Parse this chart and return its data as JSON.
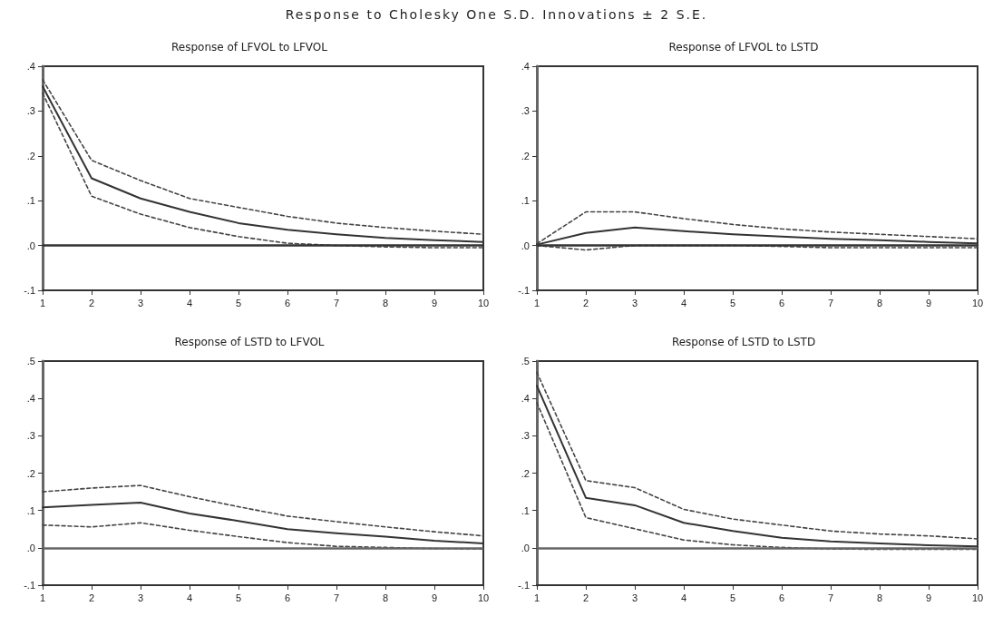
{
  "chart_data": [
    {
      "type": "other",
      "title": "Response to Cholesky One S.D. Innovations ± 2 S.E."
    },
    {
      "type": "line",
      "title": "Response of LFVOL to LFVOL",
      "x": [
        1,
        2,
        3,
        4,
        5,
        6,
        7,
        8,
        9,
        10
      ],
      "xlim": [
        1,
        10
      ],
      "xticks": [
        1,
        2,
        3,
        4,
        5,
        6,
        7,
        8,
        9,
        10
      ],
      "ylim": [
        -0.1,
        0.4
      ],
      "yticks": [
        {
          "value": -0.1,
          "label": "-.1"
        },
        {
          "value": 0,
          "label": ".0"
        },
        {
          "value": 0.1,
          "label": ".1"
        },
        {
          "value": 0.2,
          "label": ".2"
        },
        {
          "value": 0.3,
          "label": ".3"
        },
        {
          "value": 0.4,
          "label": ".4"
        }
      ],
      "grid": false,
      "marker": "none",
      "series": [
        {
          "color": "#333333",
          "line_style": "solid",
          "values": [
            0.355,
            0.15,
            0.105,
            0.075,
            0.05,
            0.035,
            0.025,
            0.017,
            0.012,
            0.008
          ]
        },
        {
          "color": "#444444",
          "line_style": "dashed",
          "values": [
            0.37,
            0.19,
            0.145,
            0.105,
            0.085,
            0.065,
            0.05,
            0.04,
            0.032,
            0.025
          ]
        },
        {
          "color": "#444444",
          "line_style": "dashed",
          "values": [
            0.34,
            0.11,
            0.07,
            0.04,
            0.02,
            0.005,
            0,
            -0.003,
            -0.005,
            -0.005
          ]
        }
      ],
      "ref_lines": [
        {
          "axis": "y",
          "value": 0,
          "color": "#333333"
        }
      ]
    },
    {
      "type": "line",
      "title": "Response of LFVOL to LSTD",
      "x": [
        1,
        2,
        3,
        4,
        5,
        6,
        7,
        8,
        9,
        10
      ],
      "xlim": [
        1,
        10
      ],
      "xticks": [
        1,
        2,
        3,
        4,
        5,
        6,
        7,
        8,
        9,
        10
      ],
      "ylim": [
        -0.1,
        0.4
      ],
      "yticks": [
        {
          "value": -0.1,
          "label": "-.1"
        },
        {
          "value": 0,
          "label": ".0"
        },
        {
          "value": 0.1,
          "label": ".1"
        },
        {
          "value": 0.2,
          "label": ".2"
        },
        {
          "value": 0.3,
          "label": ".3"
        },
        {
          "value": 0.4,
          "label": ".4"
        }
      ],
      "grid": false,
      "marker": "none",
      "series": [
        {
          "color": "#333333",
          "line_style": "solid",
          "values": [
            0.002,
            0.028,
            0.04,
            0.032,
            0.025,
            0.02,
            0.015,
            0.012,
            0.008,
            0.005
          ]
        },
        {
          "color": "#444444",
          "line_style": "dashed",
          "values": [
            0.004,
            0.075,
            0.075,
            0.06,
            0.047,
            0.037,
            0.03,
            0.025,
            0.02,
            0.015
          ]
        },
        {
          "color": "#444444",
          "line_style": "dashed",
          "values": [
            0,
            -0.01,
            0,
            0,
            0,
            -0.002,
            -0.005,
            -0.005,
            -0.005,
            -0.005
          ]
        }
      ],
      "ref_lines": [
        {
          "axis": "y",
          "value": 0,
          "color": "#333333"
        }
      ]
    },
    {
      "type": "line",
      "title": "Response of LSTD to LFVOL",
      "x": [
        1,
        2,
        3,
        4,
        5,
        6,
        7,
        8,
        9,
        10
      ],
      "xlim": [
        1,
        10
      ],
      "xticks": [
        1,
        2,
        3,
        4,
        5,
        6,
        7,
        8,
        9,
        10
      ],
      "ylim": [
        -0.1,
        0.5
      ],
      "yticks": [
        {
          "value": -0.1,
          "label": "-.1"
        },
        {
          "value": 0,
          "label": ".0"
        },
        {
          "value": 0.1,
          "label": ".1"
        },
        {
          "value": 0.2,
          "label": ".2"
        },
        {
          "value": 0.3,
          "label": ".3"
        },
        {
          "value": 0.4,
          "label": ".4"
        },
        {
          "value": 0.5,
          "label": ".5"
        }
      ],
      "grid": false,
      "marker": "none",
      "series": [
        {
          "color": "#333333",
          "line_style": "solid",
          "values": [
            0.108,
            0.115,
            0.121,
            0.092,
            0.072,
            0.05,
            0.039,
            0.03,
            0.019,
            0.012
          ]
        },
        {
          "color": "#444444",
          "line_style": "dashed",
          "values": [
            0.15,
            0.16,
            0.167,
            0.137,
            0.11,
            0.085,
            0.07,
            0.056,
            0.043,
            0.032
          ]
        },
        {
          "color": "#444444",
          "line_style": "dashed",
          "values": [
            0.061,
            0.056,
            0.067,
            0.047,
            0.03,
            0.014,
            0.004,
            0.001,
            -0.002,
            -0.003
          ]
        }
      ],
      "ref_lines": [
        {
          "axis": "y",
          "value": 0,
          "color": "#666666"
        }
      ]
    },
    {
      "type": "line",
      "title": "Response of LSTD to LSTD",
      "x": [
        1,
        2,
        3,
        4,
        5,
        6,
        7,
        8,
        9,
        10
      ],
      "xlim": [
        1,
        10
      ],
      "xticks": [
        1,
        2,
        3,
        4,
        5,
        6,
        7,
        8,
        9,
        10
      ],
      "ylim": [
        -0.1,
        0.5
      ],
      "yticks": [
        {
          "value": -0.1,
          "label": "-.1"
        },
        {
          "value": 0,
          "label": ".0"
        },
        {
          "value": 0.1,
          "label": ".1"
        },
        {
          "value": 0.2,
          "label": ".2"
        },
        {
          "value": 0.3,
          "label": ".3"
        },
        {
          "value": 0.4,
          "label": ".4"
        },
        {
          "value": 0.5,
          "label": ".5"
        }
      ],
      "grid": false,
      "marker": "none",
      "series": [
        {
          "color": "#333333",
          "line_style": "solid",
          "values": [
            0.434,
            0.134,
            0.114,
            0.067,
            0.045,
            0.027,
            0.017,
            0.012,
            0.007,
            0.004
          ]
        },
        {
          "color": "#444444",
          "line_style": "dashed",
          "values": [
            0.47,
            0.18,
            0.161,
            0.103,
            0.077,
            0.061,
            0.045,
            0.037,
            0.032,
            0.024
          ]
        },
        {
          "color": "#444444",
          "line_style": "dashed",
          "values": [
            0.389,
            0.081,
            0.051,
            0.021,
            0.008,
            0.001,
            -0.003,
            -0.004,
            -0.004,
            -0.004
          ]
        }
      ],
      "ref_lines": [
        {
          "axis": "y",
          "value": 0,
          "color": "#666666"
        }
      ]
    }
  ]
}
